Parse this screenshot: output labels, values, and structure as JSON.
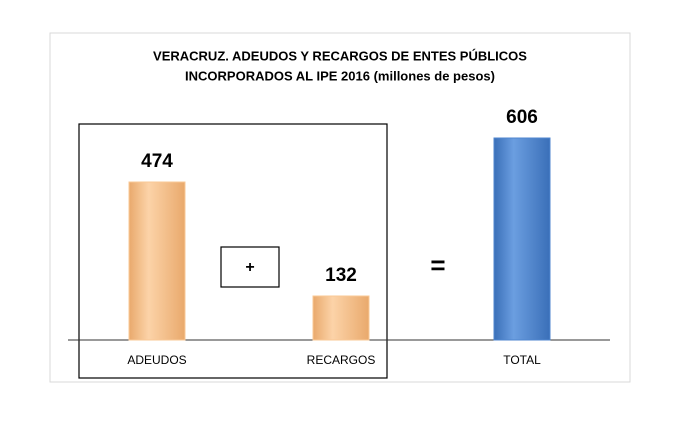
{
  "chart_data": {
    "type": "bar",
    "title": [
      "VERACRUZ. ADEUDOS Y RECARGOS DE ENTES PÚBLICOS",
      "INCORPORADOS AL IPE 2016 (millones de pesos)"
    ],
    "categories": [
      "ADEUDOS",
      "RECARGOS",
      "TOTAL"
    ],
    "values": [
      474,
      132,
      606
    ],
    "colors": [
      "#f9c896",
      "#f9c896",
      "#4f86cf"
    ],
    "annotations": [
      "+",
      "="
    ]
  }
}
